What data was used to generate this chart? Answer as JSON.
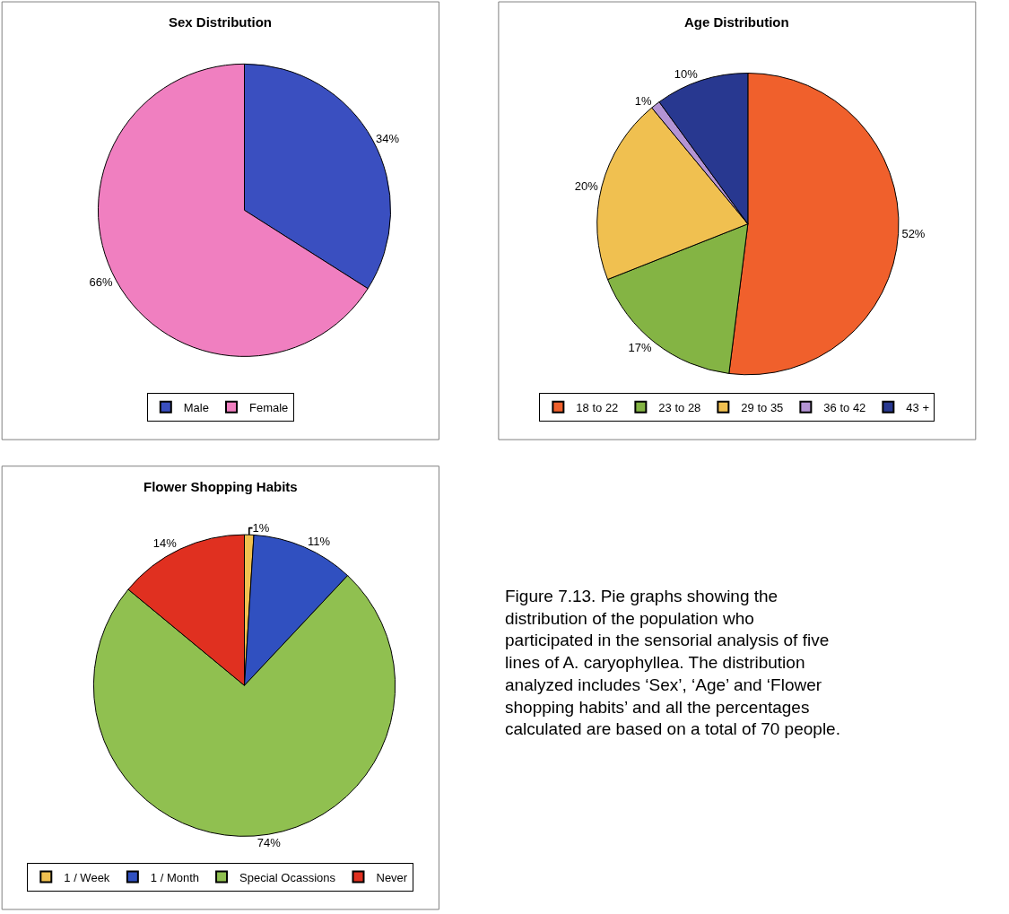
{
  "chart_data": [
    {
      "type": "pie",
      "title": "Sex Distribution",
      "categories": [
        "Male",
        "Female"
      ],
      "values": [
        34,
        66
      ],
      "colors": [
        "#3a4fc0",
        "#f07fc0"
      ],
      "value_labels": [
        "34%",
        "66%"
      ],
      "legend": "bottom"
    },
    {
      "type": "pie",
      "title": "Age Distribution",
      "categories": [
        "18 to 22",
        "23 to 28",
        "29 to 35",
        "36 to 42",
        "43 +"
      ],
      "values": [
        52,
        17,
        20,
        1,
        10
      ],
      "colors": [
        "#f0602c",
        "#84b444",
        "#f0c050",
        "#b494d4",
        "#283890"
      ],
      "value_labels": [
        "52%",
        "17%",
        "20%",
        "1%",
        "10%"
      ],
      "legend": "bottom"
    },
    {
      "type": "pie",
      "title": "Flower Shopping Habits",
      "categories": [
        "1 / Week",
        "1 / Month",
        "Special Ocassions",
        "Never"
      ],
      "values": [
        1,
        11,
        74,
        14
      ],
      "colors": [
        "#f0c050",
        "#3050c0",
        "#90c050",
        "#e03020"
      ],
      "value_labels": [
        "1%",
        "11%",
        "74%",
        "14%"
      ],
      "legend": "bottom"
    },
    {
      "type": "other",
      "annotations": [
        "Figure 7.13. Pie graphs showing the distribution of the population who participated in the sensorial analysis of five lines of A. caryophyllea. The distribution analyzed includes ‘Sex’, ‘Age’ and ‘Flower shopping habits’ and all the percentages calculated are based on a total of 70 people."
      ]
    }
  ]
}
